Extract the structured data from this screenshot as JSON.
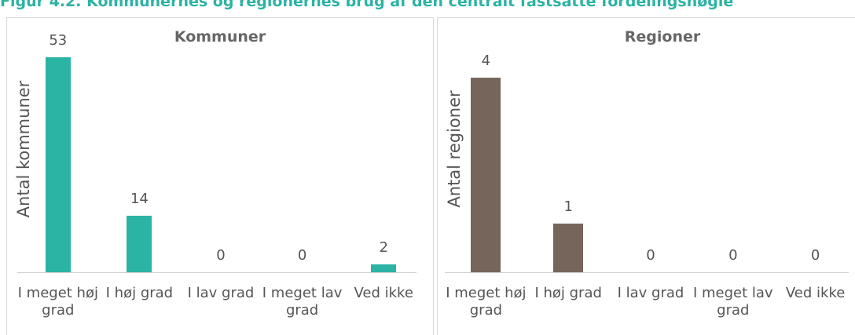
{
  "title": "Figur 4.2. Kommunernes og regionernes brug af den centralt fastsatte fordelingsnøgle",
  "chart_data": [
    {
      "type": "bar",
      "title": "Kommuner",
      "y_label": "Antal kommuner",
      "categories": [
        "I meget høj grad",
        "I høj grad",
        "I lav grad",
        "I meget lav grad",
        "Ved ikke"
      ],
      "values": [
        53,
        14,
        0,
        0,
        2
      ],
      "color": "#2bb3a3",
      "ylim": [
        0,
        60
      ]
    },
    {
      "type": "bar",
      "title": "Regioner",
      "y_label": "Antal regioner",
      "categories": [
        "I meget høj grad",
        "I høj grad",
        "I lav grad",
        "I meget lav grad",
        "Ved ikke"
      ],
      "values": [
        4,
        1,
        0,
        0,
        0
      ],
      "color": "#76655a",
      "ylim": [
        0,
        5
      ]
    }
  ]
}
